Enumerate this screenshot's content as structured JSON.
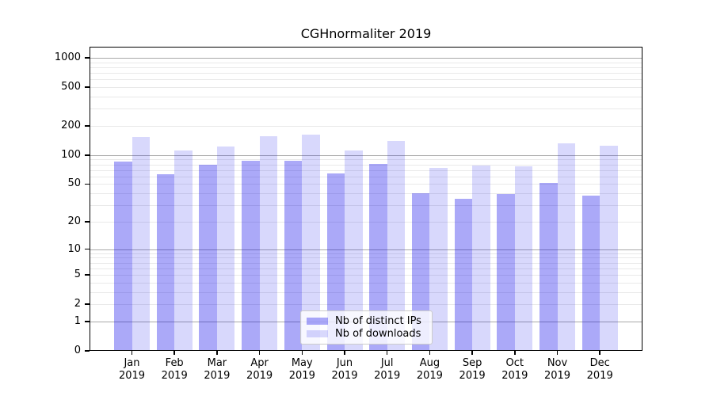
{
  "chart_data": {
    "type": "bar",
    "title": "CGHnormaliter 2019",
    "categories": [
      "Jan",
      "Feb",
      "Mar",
      "Apr",
      "May",
      "Jun",
      "Jul",
      "Aug",
      "Sep",
      "Oct",
      "Nov",
      "Dec"
    ],
    "category_year": "2019",
    "series": [
      {
        "name": "Nb of distinct IPs",
        "color": "rgba(15,10,235,0.35)",
        "color_hex_on_white": "#aaa8f8",
        "values": [
          86,
          63,
          79,
          88,
          87,
          65,
          81,
          40,
          35,
          39,
          51,
          38
        ]
      },
      {
        "name": "Nb of downloads",
        "color": "rgba(15,10,235,0.16)",
        "color_hex_on_white": "#d8d6f8",
        "values": [
          153,
          112,
          123,
          157,
          163,
          112,
          139,
          74,
          78,
          77,
          132,
          125
        ]
      }
    ],
    "yscale": "log1p",
    "yticks": [
      0,
      1,
      2,
      5,
      10,
      20,
      50,
      100,
      200,
      500,
      1000
    ],
    "ylim": [
      0,
      1300
    ],
    "xlabel": "",
    "ylabel": "",
    "grid": true,
    "gridline_major_color": "#a8a8a8",
    "gridline_minor_color": "#e9e9e9",
    "legend_position": "bottom-center"
  }
}
